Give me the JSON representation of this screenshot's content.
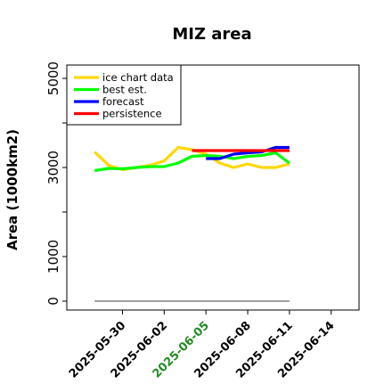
{
  "chart_data": {
    "type": "line",
    "title": "MIZ area",
    "xlabel": "",
    "ylabel": "Area (1000km2)",
    "x_domain": [
      "2025-05-26",
      "2025-06-16"
    ],
    "ylim": [
      -200,
      5300
    ],
    "yticks_major": [
      0,
      1000,
      3000,
      5000
    ],
    "yticks_minor": [
      2000,
      4000
    ],
    "xticks": [
      "2025-05-30",
      "2025-06-02",
      "2025-06-05",
      "2025-06-08",
      "2025-06-11",
      "2025-06-14"
    ],
    "xtick_colors": [
      "#000000",
      "#000000",
      "#228b22",
      "#000000",
      "#000000",
      "#000000"
    ],
    "legend_position": "upper-left",
    "grid": false,
    "series": [
      {
        "name": "ice chart data",
        "color": "#ffd700",
        "x": [
          "2025-05-28",
          "2025-05-29",
          "2025-05-30",
          "2025-05-31",
          "2025-06-01",
          "2025-06-02",
          "2025-06-03",
          "2025-06-04",
          "2025-06-05",
          "2025-06-06",
          "2025-06-07",
          "2025-06-08",
          "2025-06-09",
          "2025-06-10",
          "2025-06-11"
        ],
        "y": [
          3350,
          3050,
          2950,
          3000,
          3050,
          3150,
          3450,
          3400,
          3300,
          3100,
          3000,
          3080,
          3000,
          3000,
          3080
        ]
      },
      {
        "name": "best est.",
        "color": "#00ff00",
        "x": [
          "2025-05-28",
          "2025-05-29",
          "2025-05-30",
          "2025-05-31",
          "2025-06-01",
          "2025-06-02",
          "2025-06-03",
          "2025-06-04",
          "2025-06-05",
          "2025-06-06",
          "2025-06-07",
          "2025-06-08",
          "2025-06-09",
          "2025-06-10",
          "2025-06-11"
        ],
        "y": [
          2930,
          2980,
          2970,
          3000,
          3020,
          3020,
          3100,
          3250,
          3270,
          3250,
          3200,
          3250,
          3270,
          3330,
          3100
        ]
      },
      {
        "name": "forecast",
        "color": "#0000ff",
        "x": [
          "2025-06-05",
          "2025-06-06",
          "2025-06-07",
          "2025-06-08",
          "2025-06-09",
          "2025-06-10",
          "2025-06-11"
        ],
        "y": [
          3200,
          3200,
          3300,
          3330,
          3350,
          3450,
          3450
        ]
      },
      {
        "name": "persistence",
        "color": "#ff0000",
        "x": [
          "2025-06-04",
          "2025-06-11"
        ],
        "y": [
          3380,
          3380
        ]
      }
    ],
    "baseline": {
      "color": "#808080",
      "x": [
        "2025-05-28",
        "2025-06-11"
      ],
      "y": [
        0,
        0
      ]
    }
  }
}
